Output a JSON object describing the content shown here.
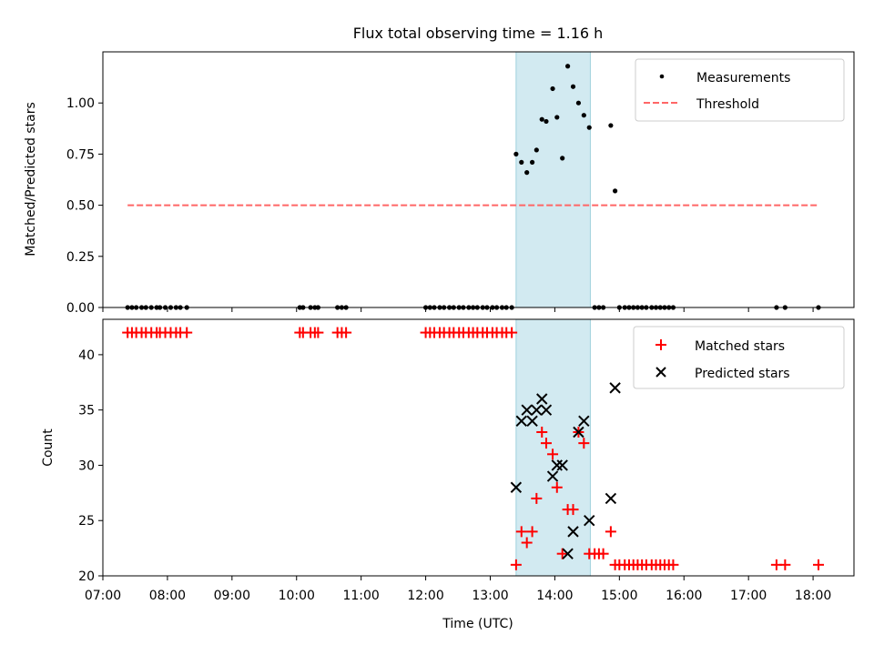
{
  "title": "Flux total observing time = 1.16 h",
  "colors": {
    "highlight": "#add8e6",
    "threshold": "#ff6666",
    "matched": "#ff0000",
    "predicted": "#000000",
    "measurement": "#000000"
  },
  "chart_data": [
    {
      "type": "scatter",
      "ylabel": "Matched/Predicted stars",
      "xlabel": "",
      "x_unit": "time (UTC)",
      "xlim": [
        "07:00",
        "18:38"
      ],
      "ylim": [
        0,
        1.25
      ],
      "yticks": [
        "0.00",
        "0.25",
        "0.50",
        "0.75",
        "1.00"
      ],
      "highlight_span": [
        "13:24",
        "14:33"
      ],
      "legend": {
        "placement": "upper right",
        "entries": [
          "Measurements",
          "Threshold"
        ]
      },
      "threshold": {
        "name": "Threshold",
        "y": 0.5,
        "x_range": [
          "07:23",
          "18:05"
        ]
      },
      "series": [
        {
          "name": "Measurements",
          "points": [
            [
              "07:23",
              0
            ],
            [
              "07:27",
              0
            ],
            [
              "07:31",
              0
            ],
            [
              "07:36",
              0
            ],
            [
              "07:40",
              0
            ],
            [
              "07:45",
              0
            ],
            [
              "07:50",
              0
            ],
            [
              "07:53",
              0
            ],
            [
              "07:58",
              0
            ],
            [
              "08:03",
              0
            ],
            [
              "08:08",
              0
            ],
            [
              "08:12",
              0
            ],
            [
              "08:18",
              0
            ],
            [
              "10:03",
              0
            ],
            [
              "10:06",
              0
            ],
            [
              "10:13",
              0
            ],
            [
              "10:17",
              0
            ],
            [
              "10:20",
              0
            ],
            [
              "10:38",
              0
            ],
            [
              "10:42",
              0
            ],
            [
              "10:46",
              0
            ],
            [
              "12:00",
              0
            ],
            [
              "12:04",
              0
            ],
            [
              "12:08",
              0
            ],
            [
              "12:13",
              0
            ],
            [
              "12:17",
              0
            ],
            [
              "12:22",
              0
            ],
            [
              "12:26",
              0
            ],
            [
              "12:31",
              0
            ],
            [
              "12:35",
              0
            ],
            [
              "12:40",
              0
            ],
            [
              "12:44",
              0
            ],
            [
              "12:48",
              0
            ],
            [
              "12:53",
              0
            ],
            [
              "12:57",
              0
            ],
            [
              "13:02",
              0
            ],
            [
              "13:06",
              0
            ],
            [
              "13:11",
              0
            ],
            [
              "13:15",
              0
            ],
            [
              "13:20",
              0
            ],
            [
              "13:24",
              0.75
            ],
            [
              "13:29",
              0.71
            ],
            [
              "13:34",
              0.66
            ],
            [
              "13:39",
              0.71
            ],
            [
              "13:43",
              0.77
            ],
            [
              "13:48",
              0.92
            ],
            [
              "13:52",
              0.91
            ],
            [
              "13:58",
              1.07
            ],
            [
              "14:02",
              0.93
            ],
            [
              "14:07",
              0.73
            ],
            [
              "14:12",
              1.18
            ],
            [
              "14:17",
              1.08
            ],
            [
              "14:22",
              1.0
            ],
            [
              "14:27",
              0.94
            ],
            [
              "14:32",
              0.88
            ],
            [
              "14:37",
              0
            ],
            [
              "14:41",
              0
            ],
            [
              "14:45",
              0
            ],
            [
              "14:52",
              0.89
            ],
            [
              "14:56",
              0.57
            ],
            [
              "15:00",
              0
            ],
            [
              "15:05",
              0
            ],
            [
              "15:09",
              0
            ],
            [
              "15:13",
              0
            ],
            [
              "15:17",
              0
            ],
            [
              "15:21",
              0
            ],
            [
              "15:25",
              0
            ],
            [
              "15:30",
              0
            ],
            [
              "15:34",
              0
            ],
            [
              "15:38",
              0
            ],
            [
              "15:42",
              0
            ],
            [
              "15:46",
              0
            ],
            [
              "15:50",
              0
            ],
            [
              "17:26",
              0
            ],
            [
              "17:34",
              0
            ],
            [
              "18:05",
              0
            ]
          ]
        }
      ]
    },
    {
      "type": "scatter",
      "ylabel": "Count",
      "xlabel": "Time (UTC)",
      "x_unit": "time (UTC)",
      "xlim": [
        "07:00",
        "18:38"
      ],
      "ylim": [
        20,
        43.2
      ],
      "yticks": [
        "20",
        "25",
        "30",
        "35",
        "40"
      ],
      "xticks": [
        "07:00",
        "08:00",
        "09:00",
        "10:00",
        "11:00",
        "12:00",
        "13:00",
        "14:00",
        "15:00",
        "16:00",
        "17:00",
        "18:00"
      ],
      "highlight_span": [
        "13:24",
        "14:33"
      ],
      "legend": {
        "placement": "upper right",
        "entries": [
          "Matched stars",
          "Predicted stars"
        ]
      },
      "series": [
        {
          "name": "Matched stars",
          "marker": "plus",
          "points": [
            [
              "07:23",
              42
            ],
            [
              "07:27",
              42
            ],
            [
              "07:31",
              42
            ],
            [
              "07:36",
              42
            ],
            [
              "07:40",
              42
            ],
            [
              "07:45",
              42
            ],
            [
              "07:50",
              42
            ],
            [
              "07:53",
              42
            ],
            [
              "07:58",
              42
            ],
            [
              "08:03",
              42
            ],
            [
              "08:08",
              42
            ],
            [
              "08:12",
              42
            ],
            [
              "08:18",
              42
            ],
            [
              "10:03",
              42
            ],
            [
              "10:06",
              42
            ],
            [
              "10:13",
              42
            ],
            [
              "10:17",
              42
            ],
            [
              "10:20",
              42
            ],
            [
              "10:38",
              42
            ],
            [
              "10:42",
              42
            ],
            [
              "10:46",
              42
            ],
            [
              "12:00",
              42
            ],
            [
              "12:04",
              42
            ],
            [
              "12:08",
              42
            ],
            [
              "12:13",
              42
            ],
            [
              "12:17",
              42
            ],
            [
              "12:22",
              42
            ],
            [
              "12:26",
              42
            ],
            [
              "12:31",
              42
            ],
            [
              "12:35",
              42
            ],
            [
              "12:40",
              42
            ],
            [
              "12:44",
              42
            ],
            [
              "12:48",
              42
            ],
            [
              "12:53",
              42
            ],
            [
              "12:57",
              42
            ],
            [
              "13:02",
              42
            ],
            [
              "13:06",
              42
            ],
            [
              "13:11",
              42
            ],
            [
              "13:15",
              42
            ],
            [
              "13:20",
              42
            ],
            [
              "13:24",
              21
            ],
            [
              "13:29",
              24
            ],
            [
              "13:34",
              23
            ],
            [
              "13:39",
              24
            ],
            [
              "13:43",
              27
            ],
            [
              "13:48",
              33
            ],
            [
              "13:52",
              32
            ],
            [
              "13:58",
              31
            ],
            [
              "14:02",
              28
            ],
            [
              "14:07",
              22
            ],
            [
              "14:12",
              26
            ],
            [
              "14:17",
              26
            ],
            [
              "14:22",
              33
            ],
            [
              "14:27",
              32
            ],
            [
              "14:32",
              22
            ],
            [
              "14:37",
              22
            ],
            [
              "14:41",
              22
            ],
            [
              "14:45",
              22
            ],
            [
              "14:52",
              24
            ],
            [
              "14:56",
              21
            ],
            [
              "15:00",
              21
            ],
            [
              "15:05",
              21
            ],
            [
              "15:09",
              21
            ],
            [
              "15:13",
              21
            ],
            [
              "15:17",
              21
            ],
            [
              "15:21",
              21
            ],
            [
              "15:25",
              21
            ],
            [
              "15:30",
              21
            ],
            [
              "15:34",
              21
            ],
            [
              "15:38",
              21
            ],
            [
              "15:42",
              21
            ],
            [
              "15:46",
              21
            ],
            [
              "15:50",
              21
            ],
            [
              "17:26",
              21
            ],
            [
              "17:34",
              21
            ],
            [
              "18:05",
              21
            ]
          ]
        },
        {
          "name": "Predicted stars",
          "marker": "x",
          "points": [
            [
              "13:24",
              28
            ],
            [
              "13:29",
              34
            ],
            [
              "13:34",
              35
            ],
            [
              "13:39",
              34
            ],
            [
              "13:43",
              35
            ],
            [
              "13:48",
              36
            ],
            [
              "13:52",
              35
            ],
            [
              "13:58",
              29
            ],
            [
              "14:02",
              30
            ],
            [
              "14:07",
              30
            ],
            [
              "14:12",
              22
            ],
            [
              "14:17",
              24
            ],
            [
              "14:22",
              33
            ],
            [
              "14:27",
              34
            ],
            [
              "14:32",
              25
            ],
            [
              "14:52",
              27
            ],
            [
              "14:56",
              37
            ]
          ]
        }
      ]
    }
  ]
}
